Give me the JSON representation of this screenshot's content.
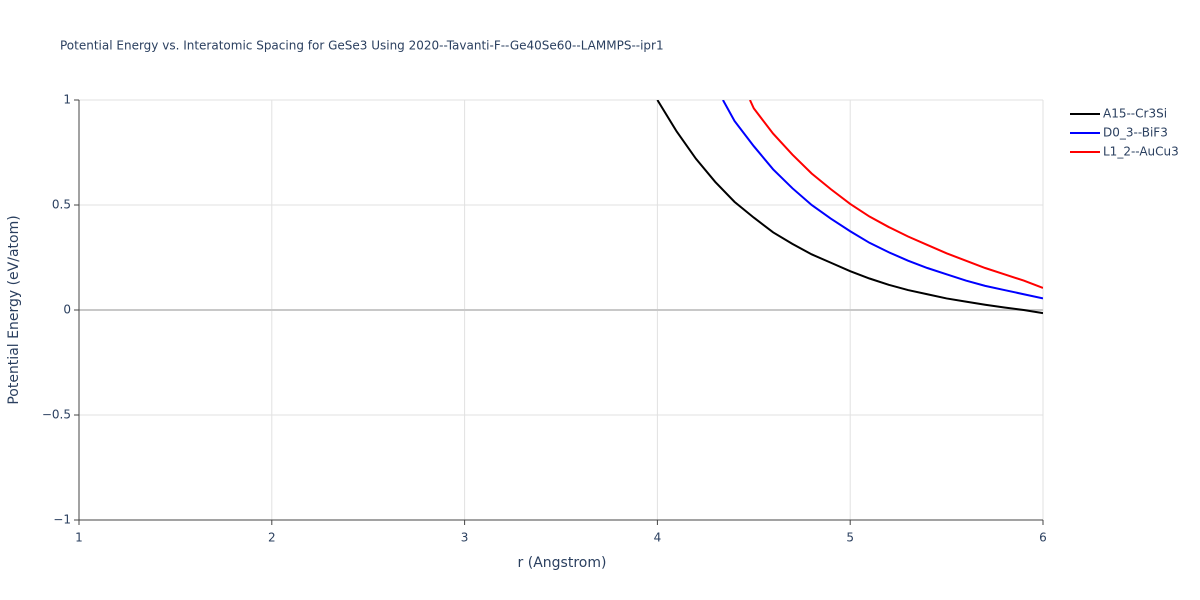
{
  "chart_data": {
    "type": "line",
    "title": "Potential Energy vs. Interatomic Spacing for GeSe3 Using 2020--Tavanti-F--Ge40Se60--LAMMPS--ipr1",
    "x_label": "r (Angstrom)",
    "y_label": "Potential Energy (eV/atom)",
    "xlim": [
      1,
      6
    ],
    "ylim": [
      -1,
      1
    ],
    "xticks": [
      1,
      2,
      3,
      4,
      5,
      6
    ],
    "yticks": [
      {
        "value": -1,
        "label": "−1"
      },
      {
        "value": -0.5,
        "label": "−0.5"
      },
      0,
      0.5,
      1
    ],
    "grid": true,
    "legend": "top-right",
    "series": [
      {
        "name": "A15--Cr3Si",
        "color": "#000000",
        "x": [
          4.0,
          4.1,
          4.2,
          4.3,
          4.4,
          4.5,
          4.6,
          4.7,
          4.8,
          4.9,
          5.0,
          5.1,
          5.2,
          5.3,
          5.4,
          5.5,
          5.6,
          5.7,
          5.8,
          5.9,
          6.0
        ],
        "values": [
          1.0,
          0.85,
          0.72,
          0.61,
          0.515,
          0.44,
          0.37,
          0.315,
          0.265,
          0.225,
          0.185,
          0.15,
          0.12,
          0.095,
          0.075,
          0.055,
          0.04,
          0.025,
          0.012,
          0.0,
          -0.015
        ]
      },
      {
        "name": "D0_3--BiF3",
        "color": "#0000ff",
        "x": [
          4.34,
          4.4,
          4.5,
          4.6,
          4.7,
          4.8,
          4.9,
          5.0,
          5.1,
          5.2,
          5.3,
          5.4,
          5.5,
          5.6,
          5.7,
          5.8,
          5.9,
          6.0
        ],
        "values": [
          1.0,
          0.9,
          0.78,
          0.67,
          0.58,
          0.5,
          0.435,
          0.375,
          0.32,
          0.275,
          0.235,
          0.2,
          0.17,
          0.14,
          0.115,
          0.095,
          0.075,
          0.055
        ]
      },
      {
        "name": "L1_2--AuCu3",
        "color": "#ff0000",
        "x": [
          4.48,
          4.5,
          4.6,
          4.7,
          4.8,
          4.9,
          5.0,
          5.1,
          5.2,
          5.3,
          5.4,
          5.5,
          5.6,
          5.7,
          5.8,
          5.9,
          6.0
        ],
        "values": [
          1.0,
          0.96,
          0.84,
          0.74,
          0.65,
          0.575,
          0.505,
          0.445,
          0.395,
          0.35,
          0.31,
          0.27,
          0.235,
          0.2,
          0.17,
          0.14,
          0.105
        ]
      }
    ]
  }
}
